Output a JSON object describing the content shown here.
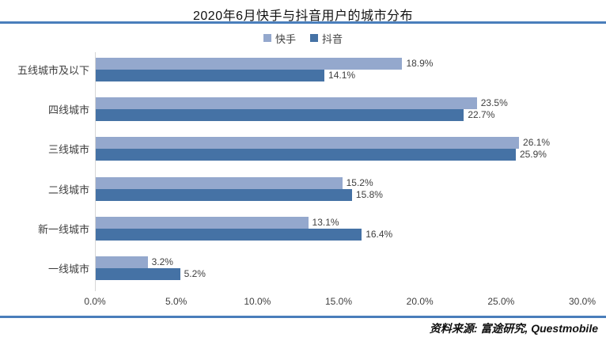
{
  "title": "2020年6月快手与抖音用户的城市分布",
  "source_note": "资料来源: 富途研究,  Questmobile",
  "colors": {
    "kuaishou": "#94A8CD",
    "douyin": "#4572A5",
    "divider": "#4A7EBB",
    "axis_line": "#D6D6D6",
    "label_text": "#404040"
  },
  "legend": [
    {
      "label": "快手",
      "color": "#94A8CD"
    },
    {
      "label": "抖音",
      "color": "#4572A5"
    }
  ],
  "chart_data": {
    "type": "bar",
    "orientation": "horizontal",
    "title": "2020年6月快手与抖音用户的城市分布",
    "categories": [
      "五线城市及以下",
      "四线城市",
      "三线城市",
      "二线城市",
      "新一线城市",
      "一线城市"
    ],
    "series": [
      {
        "name": "快手",
        "color": "#94A8CD",
        "values": [
          18.9,
          23.5,
          26.1,
          15.2,
          13.1,
          3.2
        ]
      },
      {
        "name": "抖音",
        "color": "#4572A5",
        "values": [
          14.1,
          22.7,
          25.9,
          15.8,
          16.4,
          5.2
        ]
      }
    ],
    "value_suffix": "%",
    "xlim": [
      0,
      30
    ],
    "x_ticks": [
      "0.0%",
      "5.0%",
      "10.0%",
      "15.0%",
      "20.0%",
      "25.0%",
      "30.0%"
    ],
    "xlabel": "",
    "ylabel": "",
    "grid": false,
    "legend_position": "top",
    "data_labels": true
  }
}
